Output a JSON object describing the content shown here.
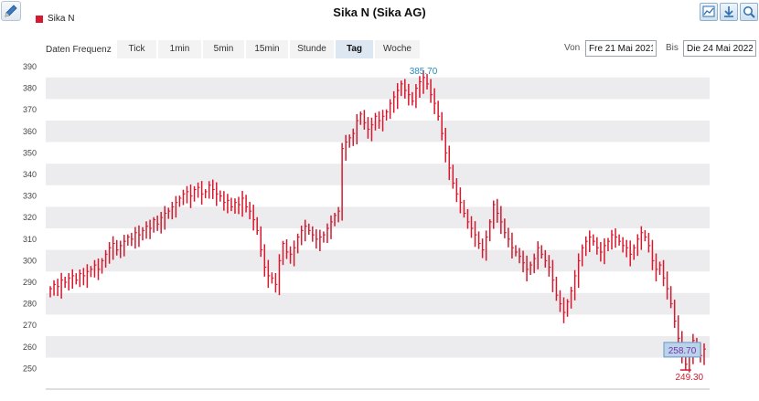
{
  "header": {
    "title": "Sika N (Sika AG)",
    "legend_label": "Sika N",
    "legend_color": "#d5192e"
  },
  "toolbar": {
    "icons": [
      "chart-icon",
      "download-icon",
      "zoom-icon"
    ]
  },
  "frequency": {
    "label": "Daten Frequenz",
    "tabs": [
      {
        "label": "Tick",
        "active": false
      },
      {
        "label": "1min",
        "active": false
      },
      {
        "label": "5min",
        "active": false
      },
      {
        "label": "15min",
        "active": false
      },
      {
        "label": "Stunde",
        "active": false
      },
      {
        "label": "Tag",
        "active": true
      },
      {
        "label": "Woche",
        "active": false
      }
    ]
  },
  "range": {
    "from_label": "Von",
    "from_value": "Fre 21 Mai 2021",
    "to_label": "Bis",
    "to_value": "Die 24 Mai 2022"
  },
  "chart_data": {
    "type": "ohlc",
    "series_name": "Sika N",
    "color": "#d5192e",
    "ylim": [
      245,
      392
    ],
    "yticks": [
      390,
      380,
      370,
      360,
      350,
      340,
      330,
      320,
      310,
      300,
      290,
      280,
      270,
      260,
      250
    ],
    "grid": "alternating horizontal bands",
    "high_label": "385.70",
    "low_label": "249.30",
    "last_label": "258.70",
    "closes": [
      287,
      289,
      288,
      291,
      290,
      292,
      293,
      291,
      294,
      293,
      295,
      296,
      298,
      296,
      300,
      303,
      306,
      308,
      305,
      307,
      309,
      311,
      310,
      313,
      312,
      314,
      316,
      315,
      319,
      317,
      320,
      322,
      323,
      325,
      327,
      329,
      331,
      332,
      330,
      333,
      334,
      331,
      332,
      335,
      333,
      331,
      330,
      327,
      328,
      325,
      327,
      326,
      329,
      325,
      323,
      319,
      314,
      305,
      297,
      293,
      292,
      289,
      300,
      308,
      304,
      303,
      306,
      311,
      314,
      316,
      314,
      312,
      310,
      311,
      312,
      315,
      318,
      321,
      323,
      352,
      355,
      357,
      359,
      365,
      368,
      364,
      361,
      363,
      367,
      365,
      367,
      369,
      373,
      376,
      379,
      382,
      379,
      377,
      374,
      380,
      383,
      385,
      382,
      377,
      373,
      367,
      359,
      350,
      343,
      336,
      331,
      327,
      322,
      318,
      315,
      312,
      308,
      305,
      311,
      318,
      326,
      322,
      318,
      313,
      310,
      306,
      304,
      302,
      299,
      296,
      298,
      301,
      306,
      303,
      300,
      297,
      291,
      284,
      280,
      276,
      281,
      286,
      293,
      300,
      306,
      309,
      311,
      309,
      306,
      304,
      307,
      309,
      312,
      311,
      309,
      307,
      306,
      303,
      306,
      310,
      313,
      311,
      307,
      300,
      296,
      298,
      292,
      287,
      280,
      272,
      264,
      258,
      252,
      257,
      263,
      260,
      256,
      259
    ]
  }
}
